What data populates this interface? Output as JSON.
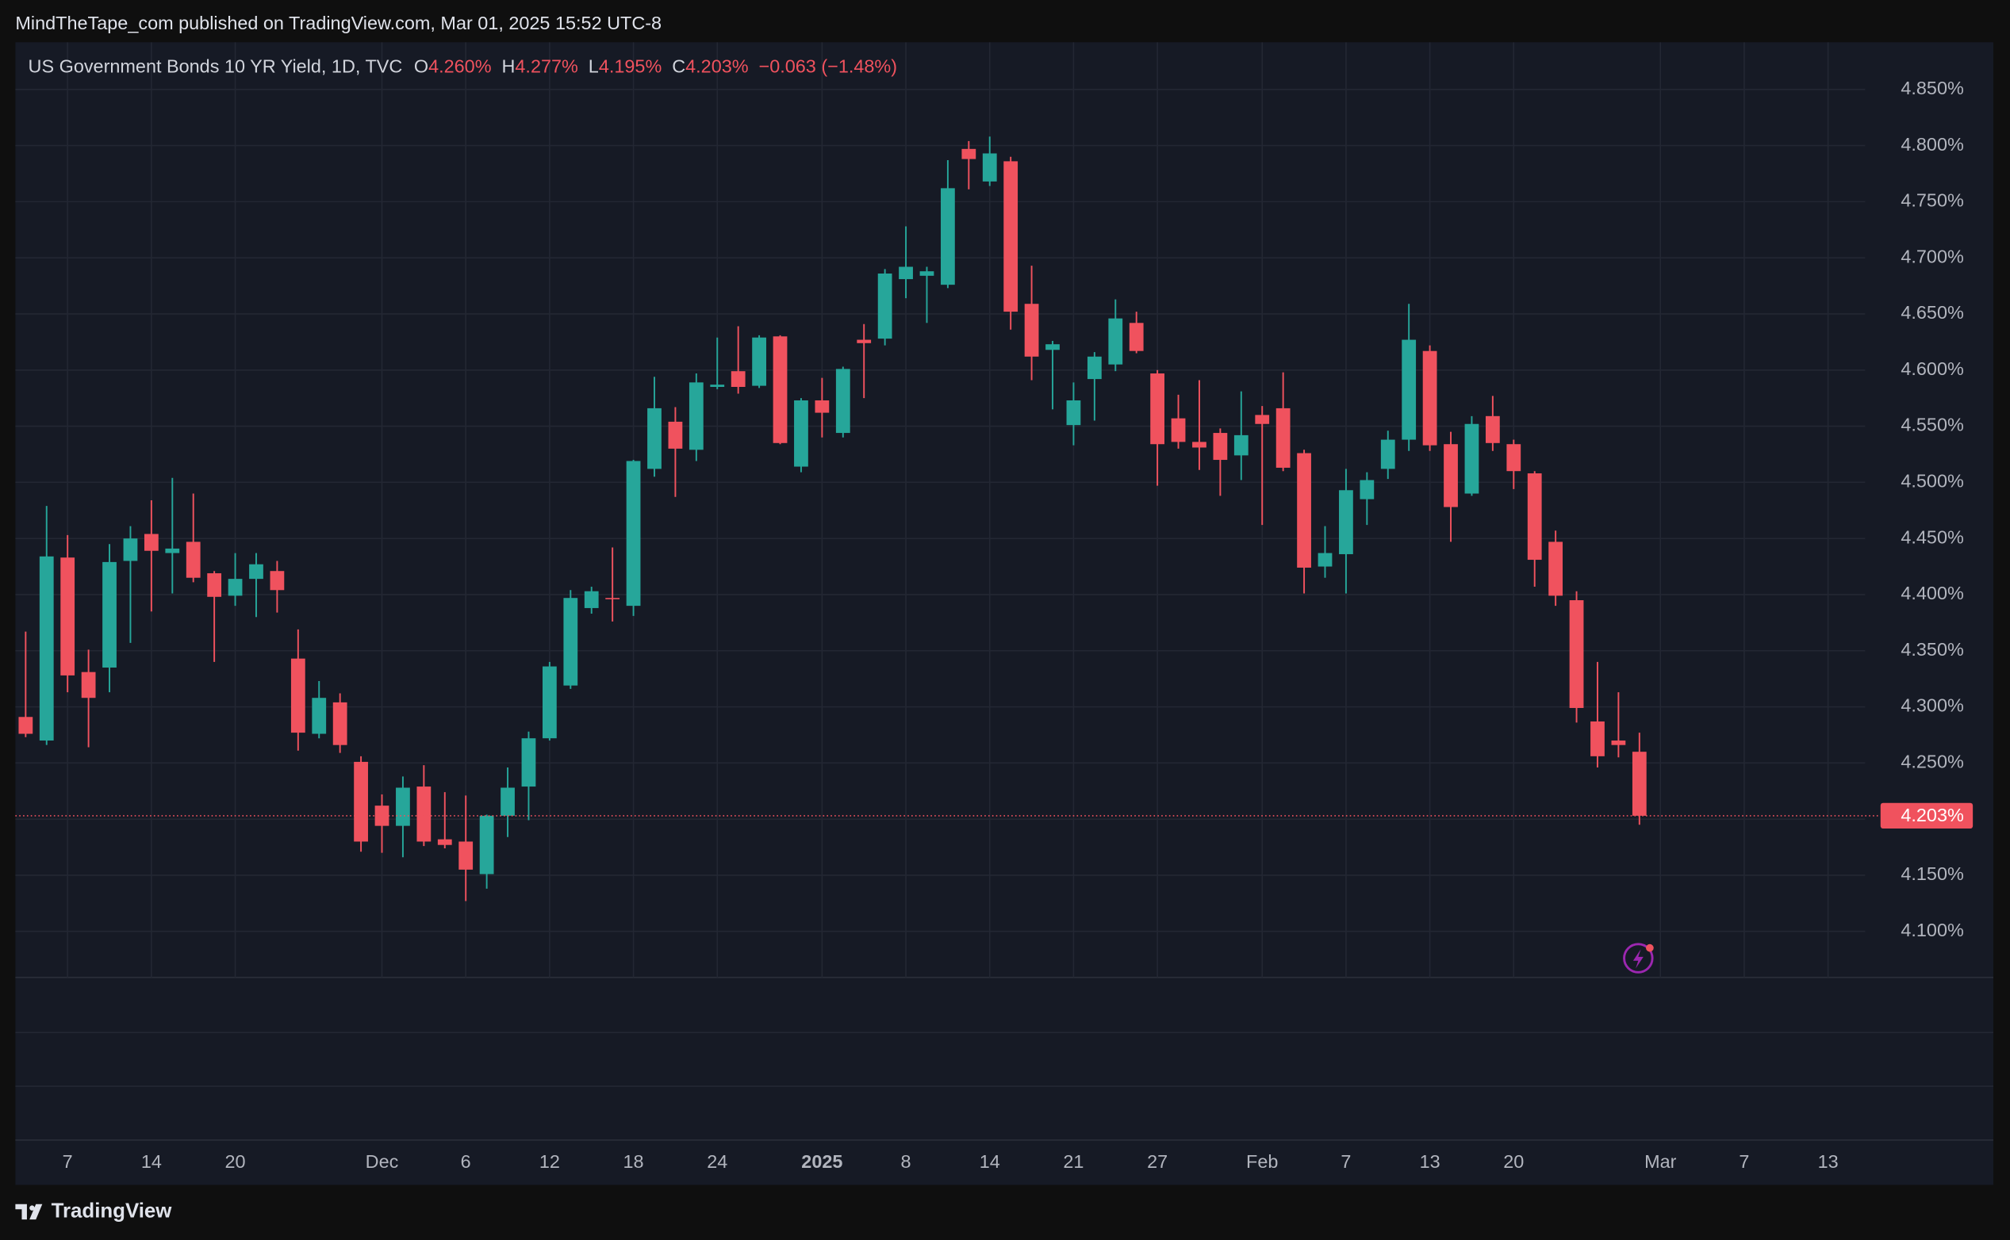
{
  "header": {
    "publisher": "MindTheTape_com published on TradingView.com, Mar 01, 2025 15:52 UTC-8"
  },
  "footer": {
    "brand": "TradingView"
  },
  "chart_data": {
    "type": "candlestick",
    "title": "US Government Bonds 10 YR Yield, 1D, TVC",
    "legend": {
      "fields": [
        {
          "key": "O",
          "text": "4.260%"
        },
        {
          "key": "H",
          "text": "4.277%"
        },
        {
          "key": "L",
          "text": "4.195%"
        },
        {
          "key": "C",
          "text": "4.203%"
        }
      ],
      "change": "−0.063 (−1.48%)"
    },
    "last_price_label": "4.203%",
    "up_color": "#26a69a",
    "down_color": "#f0525e",
    "grid": true,
    "open": [
      4.291,
      4.27,
      4.433,
      4.331,
      4.335,
      4.43,
      4.454,
      4.437,
      4.447,
      4.419,
      4.399,
      4.414,
      4.421,
      4.343,
      4.276,
      4.304,
      4.251,
      4.212,
      4.194,
      4.229,
      4.182,
      4.18,
      4.151,
      4.203,
      4.229,
      4.272,
      4.319,
      4.388,
      4.397,
      4.39,
      4.512,
      4.554,
      4.529,
      4.585,
      4.599,
      4.586,
      4.63,
      4.514,
      4.573,
      4.544,
      4.627,
      4.628,
      4.681,
      4.684,
      4.676,
      4.797,
      4.768,
      4.786,
      4.659,
      4.618,
      4.551,
      4.592,
      4.605,
      4.642,
      4.597,
      4.557,
      4.536,
      4.544,
      4.524,
      4.56,
      4.566,
      4.526,
      4.425,
      4.436,
      4.485,
      4.512,
      4.538,
      4.617,
      4.534,
      4.49,
      4.559,
      4.534,
      4.508,
      4.447,
      4.395,
      4.287,
      4.27,
      4.26
    ],
    "high": [
      4.367,
      4.479,
      4.453,
      4.351,
      4.445,
      4.461,
      4.484,
      4.504,
      4.49,
      4.421,
      4.437,
      4.437,
      4.43,
      4.369,
      4.323,
      4.312,
      4.256,
      4.222,
      4.238,
      4.248,
      4.224,
      4.221,
      4.204,
      4.246,
      4.278,
      4.34,
      4.404,
      4.407,
      4.442,
      4.52,
      4.594,
      4.567,
      4.597,
      4.629,
      4.639,
      4.631,
      4.631,
      4.575,
      4.593,
      4.603,
      4.641,
      4.69,
      4.728,
      4.692,
      4.787,
      4.804,
      4.808,
      4.79,
      4.693,
      4.626,
      4.589,
      4.616,
      4.663,
      4.652,
      4.6,
      4.578,
      4.591,
      4.548,
      4.581,
      4.568,
      4.598,
      4.529,
      4.461,
      4.512,
      4.509,
      4.546,
      4.659,
      4.622,
      4.545,
      4.559,
      4.577,
      4.538,
      4.51,
      4.457,
      4.403,
      4.34,
      4.313,
      4.277
    ],
    "low": [
      4.273,
      4.266,
      4.313,
      4.264,
      4.313,
      4.357,
      4.385,
      4.401,
      4.411,
      4.34,
      4.39,
      4.38,
      4.384,
      4.261,
      4.272,
      4.259,
      4.171,
      4.17,
      4.166,
      4.176,
      4.174,
      4.127,
      4.138,
      4.184,
      4.199,
      4.27,
      4.316,
      4.383,
      4.376,
      4.381,
      4.505,
      4.487,
      4.519,
      4.583,
      4.579,
      4.584,
      4.534,
      4.509,
      4.54,
      4.54,
      4.575,
      4.622,
      4.664,
      4.642,
      4.673,
      4.761,
      4.764,
      4.636,
      4.591,
      4.565,
      4.533,
      4.555,
      4.599,
      4.615,
      4.497,
      4.53,
      4.511,
      4.488,
      4.502,
      4.462,
      4.51,
      4.401,
      4.415,
      4.401,
      4.462,
      4.503,
      4.528,
      4.528,
      4.447,
      4.488,
      4.528,
      4.494,
      4.407,
      4.39,
      4.286,
      4.246,
      4.255,
      4.195
    ],
    "close": [
      4.276,
      4.434,
      4.328,
      4.308,
      4.429,
      4.45,
      4.439,
      4.441,
      4.415,
      4.398,
      4.414,
      4.427,
      4.404,
      4.277,
      4.308,
      4.266,
      4.18,
      4.194,
      4.228,
      4.18,
      4.177,
      4.155,
      4.203,
      4.228,
      4.272,
      4.336,
      4.397,
      4.403,
      4.396,
      4.519,
      4.566,
      4.53,
      4.589,
      4.587,
      4.585,
      4.629,
      4.535,
      4.573,
      4.562,
      4.601,
      4.624,
      4.686,
      4.692,
      4.688,
      4.762,
      4.788,
      4.793,
      4.652,
      4.612,
      4.623,
      4.573,
      4.612,
      4.646,
      4.617,
      4.534,
      4.536,
      4.531,
      4.52,
      4.542,
      4.552,
      4.513,
      4.424,
      4.437,
      4.493,
      4.502,
      4.538,
      4.627,
      4.533,
      4.478,
      4.552,
      4.535,
      4.51,
      4.431,
      4.399,
      4.299,
      4.256,
      4.266,
      4.203
    ],
    "xlim": [
      -0.49,
      87.77
    ],
    "xticks": [
      {
        "value": 2,
        "label": "7"
      },
      {
        "value": 6,
        "label": "14"
      },
      {
        "value": 10,
        "label": "20"
      },
      {
        "value": 17,
        "label": "Dec"
      },
      {
        "value": 21,
        "label": "6"
      },
      {
        "value": 25,
        "label": "12"
      },
      {
        "value": 29,
        "label": "18"
      },
      {
        "value": 33,
        "label": "24"
      },
      {
        "value": 38,
        "label": "2025",
        "bold": true
      },
      {
        "value": 42,
        "label": "8"
      },
      {
        "value": 46,
        "label": "14"
      },
      {
        "value": 50,
        "label": "21"
      },
      {
        "value": 54,
        "label": "27"
      },
      {
        "value": 59,
        "label": "Feb"
      },
      {
        "value": 63,
        "label": "7"
      },
      {
        "value": 67,
        "label": "13"
      },
      {
        "value": 71,
        "label": "20"
      },
      {
        "value": 78,
        "label": "Mar"
      },
      {
        "value": 82,
        "label": "7"
      },
      {
        "value": 86,
        "label": "13"
      }
    ],
    "ylim": [
      4.059,
      4.892
    ],
    "yticks": [
      {
        "value": 4.1,
        "label": "4.100%"
      },
      {
        "value": 4.15,
        "label": "4.150%"
      },
      {
        "value": 4.2,
        "label": "4.200%"
      },
      {
        "value": 4.25,
        "label": "4.250%"
      },
      {
        "value": 4.3,
        "label": "4.300%"
      },
      {
        "value": 4.35,
        "label": "4.350%"
      },
      {
        "value": 4.4,
        "label": "4.400%"
      },
      {
        "value": 4.45,
        "label": "4.450%"
      },
      {
        "value": 4.5,
        "label": "4.500%"
      },
      {
        "value": 4.55,
        "label": "4.550%"
      },
      {
        "value": 4.6,
        "label": "4.600%"
      },
      {
        "value": 4.65,
        "label": "4.650%"
      },
      {
        "value": 4.7,
        "label": "4.700%"
      },
      {
        "value": 4.75,
        "label": "4.750%"
      },
      {
        "value": 4.8,
        "label": "4.800%"
      },
      {
        "value": 4.85,
        "label": "4.850%"
      }
    ]
  }
}
